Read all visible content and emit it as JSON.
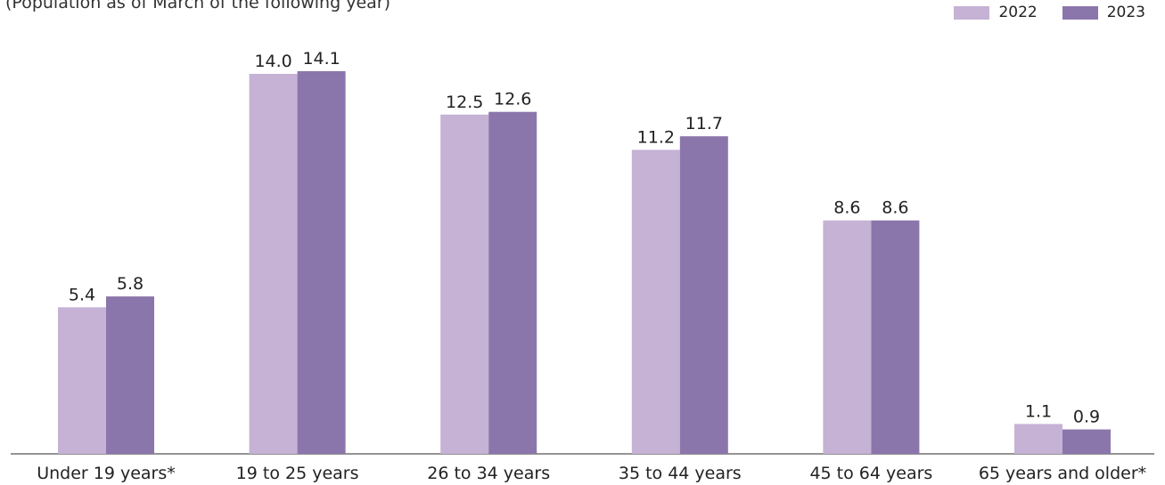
{
  "subtitle": "(Population as of March of the following year)",
  "chart_data": {
    "type": "bar",
    "categories": [
      "Under 19 years*",
      "19 to 25 years",
      "26 to 34 years",
      "35 to 44 years",
      "45 to 64 years",
      "65 years and older*"
    ],
    "series": [
      {
        "name": "2022",
        "color": "#c5b2d5",
        "values": [
          5.4,
          14.0,
          12.5,
          11.2,
          8.6,
          1.1
        ]
      },
      {
        "name": "2023",
        "color": "#8b76ab",
        "values": [
          5.8,
          14.1,
          12.6,
          11.7,
          8.6,
          0.9
        ]
      }
    ],
    "ylim": [
      0,
      16
    ],
    "grid": false,
    "legend_position": "top-right"
  }
}
